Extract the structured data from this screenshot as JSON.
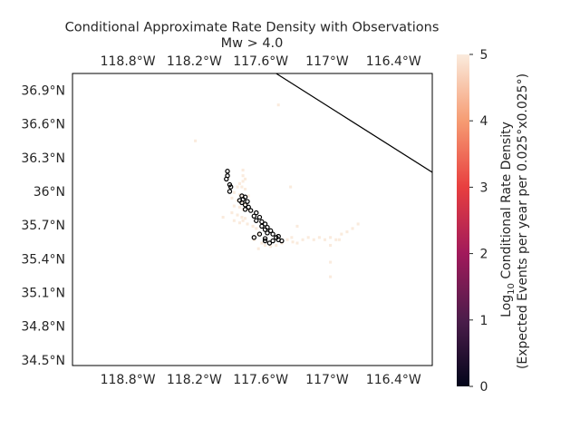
{
  "title_line1": "Conditional Approximate Rate Density with Observations",
  "title_line2": "Mw > 4.0",
  "colors": {
    "frame": "#000000",
    "fault": "#000000",
    "observation": "#000000",
    "text": "#262626"
  },
  "colorbar": {
    "label_line1": "Log",
    "label_sub": "10",
    "label_line1_rest": " Conditional Rate Density",
    "label_line2": "(Expected Events per year per 0.025°x0.025°)",
    "ticks": [
      "0",
      "1",
      "2",
      "3",
      "4",
      "5"
    ],
    "range": [
      0,
      5
    ],
    "colormap": "rocket",
    "stops": [
      "#03051a",
      "#4c1d4b",
      "#a11a5b",
      "#e83f3f",
      "#f69c73",
      "#faebdd"
    ]
  },
  "map": {
    "lon_range": [
      -119.3,
      -116.05
    ],
    "lat_range": [
      34.45,
      37.05
    ],
    "lon_ticks": [
      -118.8,
      -118.2,
      -117.6,
      -117.0,
      -116.4
    ],
    "lon_tick_labels": [
      "118.8°W",
      "118.2°W",
      "117.6°W",
      "117°W",
      "116.4°W"
    ],
    "lat_ticks": [
      36.9,
      36.6,
      36.3,
      36.0,
      35.7,
      35.4,
      35.1,
      34.8,
      34.5
    ],
    "lat_tick_labels": [
      "36.9°N",
      "36.6°N",
      "36.3°N",
      "36°N",
      "35.7°N",
      "35.4°N",
      "35.1°N",
      "34.8°N",
      "34.5°N"
    ],
    "boundary_line": [
      [
        -117.46,
        37.05
      ],
      [
        -116.05,
        36.17
      ]
    ],
    "cell_size_deg": 0.025,
    "rate_cells": [
      [
        -117.44,
        36.77,
        5
      ],
      [
        -118.19,
        36.45,
        5
      ],
      [
        -117.33,
        36.04,
        5
      ],
      [
        -117.76,
        36.19,
        5
      ],
      [
        -117.76,
        36.14,
        5
      ],
      [
        -117.74,
        36.11,
        5
      ],
      [
        -117.76,
        36.09,
        5
      ],
      [
        -117.79,
        36.07,
        5
      ],
      [
        -117.81,
        36.04,
        5
      ],
      [
        -117.77,
        36.04,
        5
      ],
      [
        -117.74,
        36.02,
        5
      ],
      [
        -117.84,
        35.99,
        5
      ],
      [
        -117.79,
        35.97,
        5
      ],
      [
        -117.76,
        35.96,
        5
      ],
      [
        -117.71,
        35.96,
        5
      ],
      [
        -117.86,
        35.94,
        5
      ],
      [
        -117.81,
        35.92,
        5
      ],
      [
        -117.77,
        35.91,
        5
      ],
      [
        -117.74,
        35.89,
        5
      ],
      [
        -117.84,
        35.87,
        5
      ],
      [
        -117.79,
        35.86,
        5
      ],
      [
        -117.76,
        35.84,
        5
      ],
      [
        -117.71,
        35.84,
        5
      ],
      [
        -117.86,
        35.81,
        5
      ],
      [
        -117.81,
        35.79,
        5
      ],
      [
        -117.77,
        35.77,
        5
      ],
      [
        -117.74,
        35.76,
        5
      ],
      [
        -117.94,
        35.77,
        5
      ],
      [
        -117.84,
        35.74,
        5
      ],
      [
        -117.79,
        35.72,
        5
      ],
      [
        -117.76,
        35.74,
        5
      ],
      [
        -117.72,
        35.71,
        5
      ],
      [
        -117.67,
        35.69,
        5
      ],
      [
        -117.64,
        35.67,
        5
      ],
      [
        -117.62,
        35.62,
        5
      ],
      [
        -117.66,
        35.57,
        5
      ],
      [
        -117.59,
        35.54,
        5
      ],
      [
        -117.56,
        35.52,
        5
      ],
      [
        -117.62,
        35.49,
        5
      ],
      [
        -117.51,
        35.51,
        5
      ],
      [
        -117.46,
        35.52,
        5
      ],
      [
        -117.41,
        35.54,
        5
      ],
      [
        -117.36,
        35.57,
        5
      ],
      [
        -117.31,
        35.55,
        5
      ],
      [
        -117.27,
        35.54,
        5
      ],
      [
        -117.22,
        35.57,
        5
      ],
      [
        -117.17,
        35.59,
        5
      ],
      [
        -117.12,
        35.57,
        5
      ],
      [
        -117.07,
        35.59,
        5
      ],
      [
        -117.02,
        35.57,
        5
      ],
      [
        -116.97,
        35.59,
        5
      ],
      [
        -116.92,
        35.57,
        5
      ],
      [
        -116.87,
        35.62,
        5
      ],
      [
        -116.82,
        35.64,
        5
      ],
      [
        -116.77,
        35.67,
        5
      ],
      [
        -116.72,
        35.71,
        5
      ],
      [
        -117.27,
        35.69,
        5
      ],
      [
        -117.32,
        35.59,
        5
      ],
      [
        -116.97,
        35.52,
        5
      ],
      [
        -116.97,
        35.37,
        5
      ],
      [
        -116.97,
        35.24,
        5
      ],
      [
        -116.89,
        35.57,
        5
      ]
    ],
    "observations": [
      [
        -117.9,
        36.18
      ],
      [
        -117.9,
        36.14
      ],
      [
        -117.91,
        36.11
      ],
      [
        -117.88,
        36.06
      ],
      [
        -117.87,
        36.04
      ],
      [
        -117.88,
        36.0
      ],
      [
        -117.77,
        35.96
      ],
      [
        -117.74,
        35.95
      ],
      [
        -117.76,
        35.93
      ],
      [
        -117.79,
        35.92
      ],
      [
        -117.72,
        35.91
      ],
      [
        -117.77,
        35.9
      ],
      [
        -117.74,
        35.88
      ],
      [
        -117.71,
        35.86
      ],
      [
        -117.74,
        35.84
      ],
      [
        -117.69,
        35.83
      ],
      [
        -117.64,
        35.81
      ],
      [
        -117.66,
        35.78
      ],
      [
        -117.61,
        35.77
      ],
      [
        -117.64,
        35.74
      ],
      [
        -117.59,
        35.73
      ],
      [
        -117.56,
        35.71
      ],
      [
        -117.59,
        35.69
      ],
      [
        -117.54,
        35.68
      ],
      [
        -117.56,
        35.66
      ],
      [
        -117.51,
        35.65
      ],
      [
        -117.54,
        35.63
      ],
      [
        -117.49,
        35.62
      ],
      [
        -117.46,
        35.59
      ],
      [
        -117.44,
        35.57
      ],
      [
        -117.49,
        35.56
      ],
      [
        -117.56,
        35.58
      ],
      [
        -117.56,
        35.56
      ],
      [
        -117.66,
        35.59
      ],
      [
        -117.61,
        35.62
      ],
      [
        -117.52,
        35.54
      ],
      [
        -117.41,
        35.56
      ],
      [
        -117.44,
        35.6
      ]
    ]
  }
}
